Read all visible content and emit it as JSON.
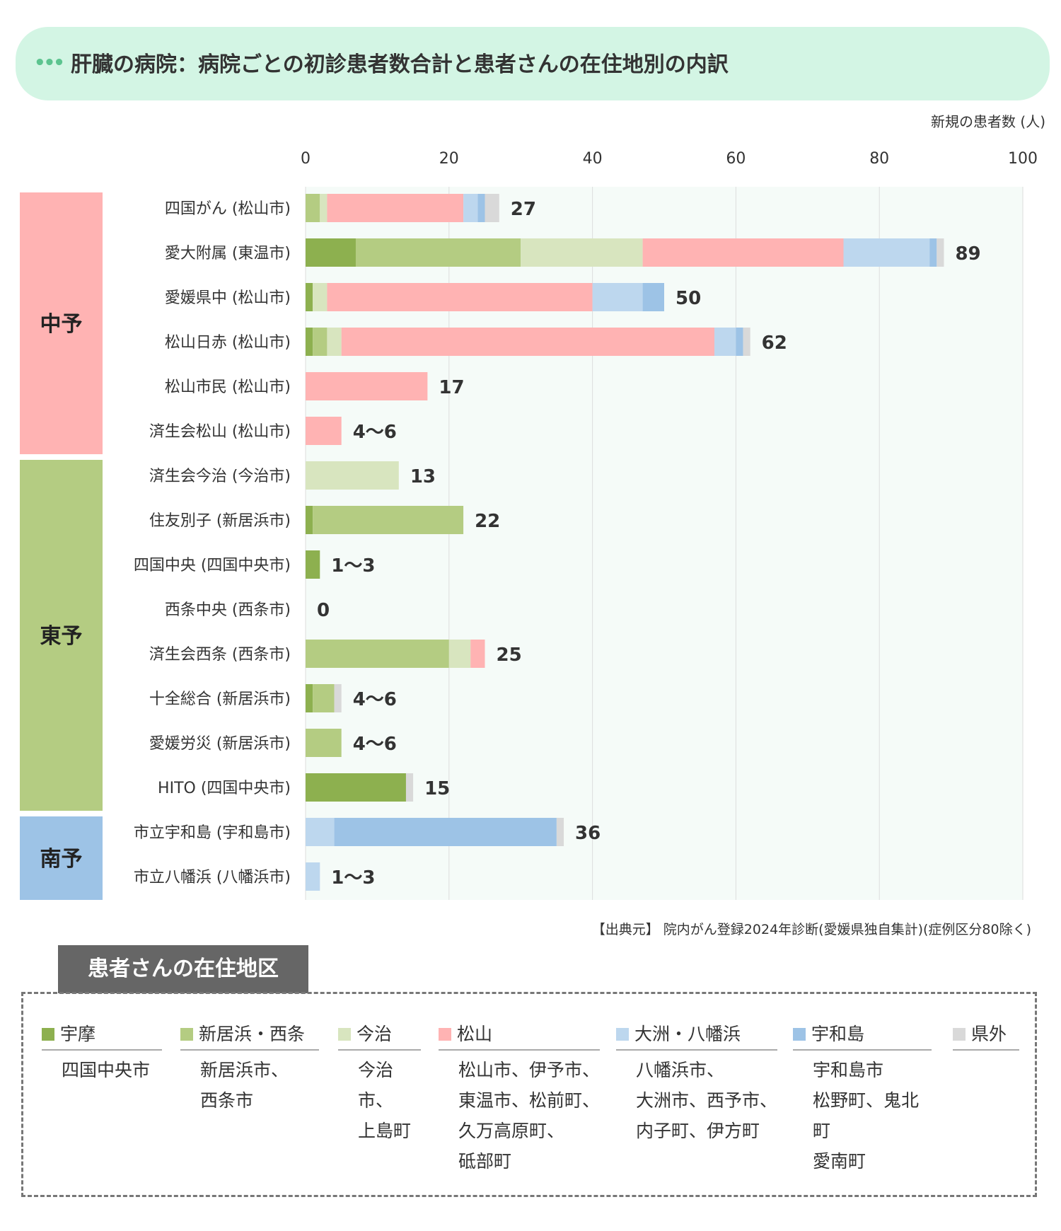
{
  "header": {
    "dots": "•••",
    "title": "肝臓の病院：病院ごとの初診患者数合計と患者さんの在住地別の内訳"
  },
  "chart_data": {
    "type": "bar",
    "orientation": "horizontal",
    "stacked": true,
    "xlabel": "新規の患者数 (人)",
    "xlim": [
      0,
      100
    ],
    "x_ticks": [
      "0",
      "20",
      "40",
      "60",
      "80",
      "100"
    ],
    "grid": true,
    "segment_colors": {
      "宇摩": "#8db04f",
      "新居浜・西条": "#b4cc82",
      "今治": "#d8e5bf",
      "松山": "#ffb3b3",
      "大洲・八幡浜": "#bdd7ee",
      "宇和島": "#9dc3e6",
      "県外": "#d9d9d9"
    },
    "series_order": [
      "宇摩",
      "新居浜・西条",
      "今治",
      "松山",
      "大洲・八幡浜",
      "宇和島",
      "県外"
    ],
    "groups": [
      {
        "name": "中予",
        "color": "#ffb3b3",
        "rows": 6
      },
      {
        "name": "東予",
        "color": "#b4cc82",
        "rows": 8
      },
      {
        "name": "南予",
        "color": "#9dc3e6",
        "rows": 2
      }
    ],
    "rows": [
      {
        "label": "四国がん (松山市)",
        "total_label": "27",
        "segments": [
          0,
          2,
          1,
          19,
          2,
          1,
          2
        ]
      },
      {
        "label": "愛大附属 (東温市)",
        "total_label": "89",
        "segments": [
          7,
          23,
          17,
          28,
          12,
          1,
          1
        ]
      },
      {
        "label": "愛媛県中 (松山市)",
        "total_label": "50",
        "segments": [
          1,
          0,
          2,
          37,
          7,
          3,
          0
        ]
      },
      {
        "label": "松山日赤 (松山市)",
        "total_label": "62",
        "segments": [
          1,
          2,
          2,
          52,
          3,
          1,
          1
        ]
      },
      {
        "label": "松山市民 (松山市)",
        "total_label": "17",
        "segments": [
          0,
          0,
          0,
          17,
          0,
          0,
          0
        ]
      },
      {
        "label": "済生会松山 (松山市)",
        "total_label": "4～6",
        "segments": [
          0,
          0,
          0,
          5,
          0,
          0,
          0
        ]
      },
      {
        "label": "済生会今治 (今治市)",
        "total_label": "13",
        "segments": [
          0,
          0,
          13,
          0,
          0,
          0,
          0
        ]
      },
      {
        "label": "住友別子 (新居浜市)",
        "total_label": "22",
        "segments": [
          1,
          21,
          0,
          0,
          0,
          0,
          0
        ]
      },
      {
        "label": "四国中央 (四国中央市)",
        "total_label": "1～3",
        "segments": [
          2,
          0,
          0,
          0,
          0,
          0,
          0
        ]
      },
      {
        "label": "西条中央 (西条市)",
        "total_label": "0",
        "segments": [
          0,
          0,
          0,
          0,
          0,
          0,
          0
        ]
      },
      {
        "label": "済生会西条 (西条市)",
        "total_label": "25",
        "segments": [
          0,
          20,
          3,
          2,
          0,
          0,
          0
        ]
      },
      {
        "label": "十全総合 (新居浜市)",
        "total_label": "4～6",
        "segments": [
          1,
          3,
          0,
          0,
          0,
          0,
          1
        ]
      },
      {
        "label": "愛媛労災 (新居浜市)",
        "total_label": "4～6",
        "segments": [
          0,
          5,
          0,
          0,
          0,
          0,
          0
        ]
      },
      {
        "label": "HITO (四国中央市)",
        "total_label": "15",
        "segments": [
          14,
          0,
          0,
          0,
          0,
          0,
          1
        ]
      },
      {
        "label": "市立宇和島 (宇和島市)",
        "total_label": "36",
        "segments": [
          0,
          0,
          0,
          0,
          4,
          31,
          1
        ]
      },
      {
        "label": "市立八幡浜 (八幡浜市)",
        "total_label": "1～3",
        "segments": [
          0,
          0,
          0,
          0,
          2,
          0,
          0
        ]
      }
    ]
  },
  "source": "【出典元】 院内がん登録2024年診断(愛媛県独自集計)(症例区分80除く)",
  "legend": {
    "title": "患者さんの在住地区",
    "items": [
      {
        "name": "宇摩",
        "color": "#8db04f",
        "areas": "四国中央市"
      },
      {
        "name": "新居浜・西条",
        "color": "#b4cc82",
        "areas": "新居浜市、\n西条市"
      },
      {
        "name": "今治",
        "color": "#d8e5bf",
        "areas": "今治市、\n上島町"
      },
      {
        "name": "松山",
        "color": "#ffb3b3",
        "areas": "松山市、伊予市、\n東温市、松前町、\n久万高原町、\n砥部町"
      },
      {
        "name": "大洲・八幡浜",
        "color": "#bdd7ee",
        "areas": "八幡浜市、\n大洲市、西予市、\n内子町、伊方町"
      },
      {
        "name": "宇和島",
        "color": "#9dc3e6",
        "areas": "宇和島市\n松野町、鬼北町\n愛南町"
      },
      {
        "name": "県外",
        "color": "#d9d9d9",
        "areas": ""
      }
    ]
  }
}
